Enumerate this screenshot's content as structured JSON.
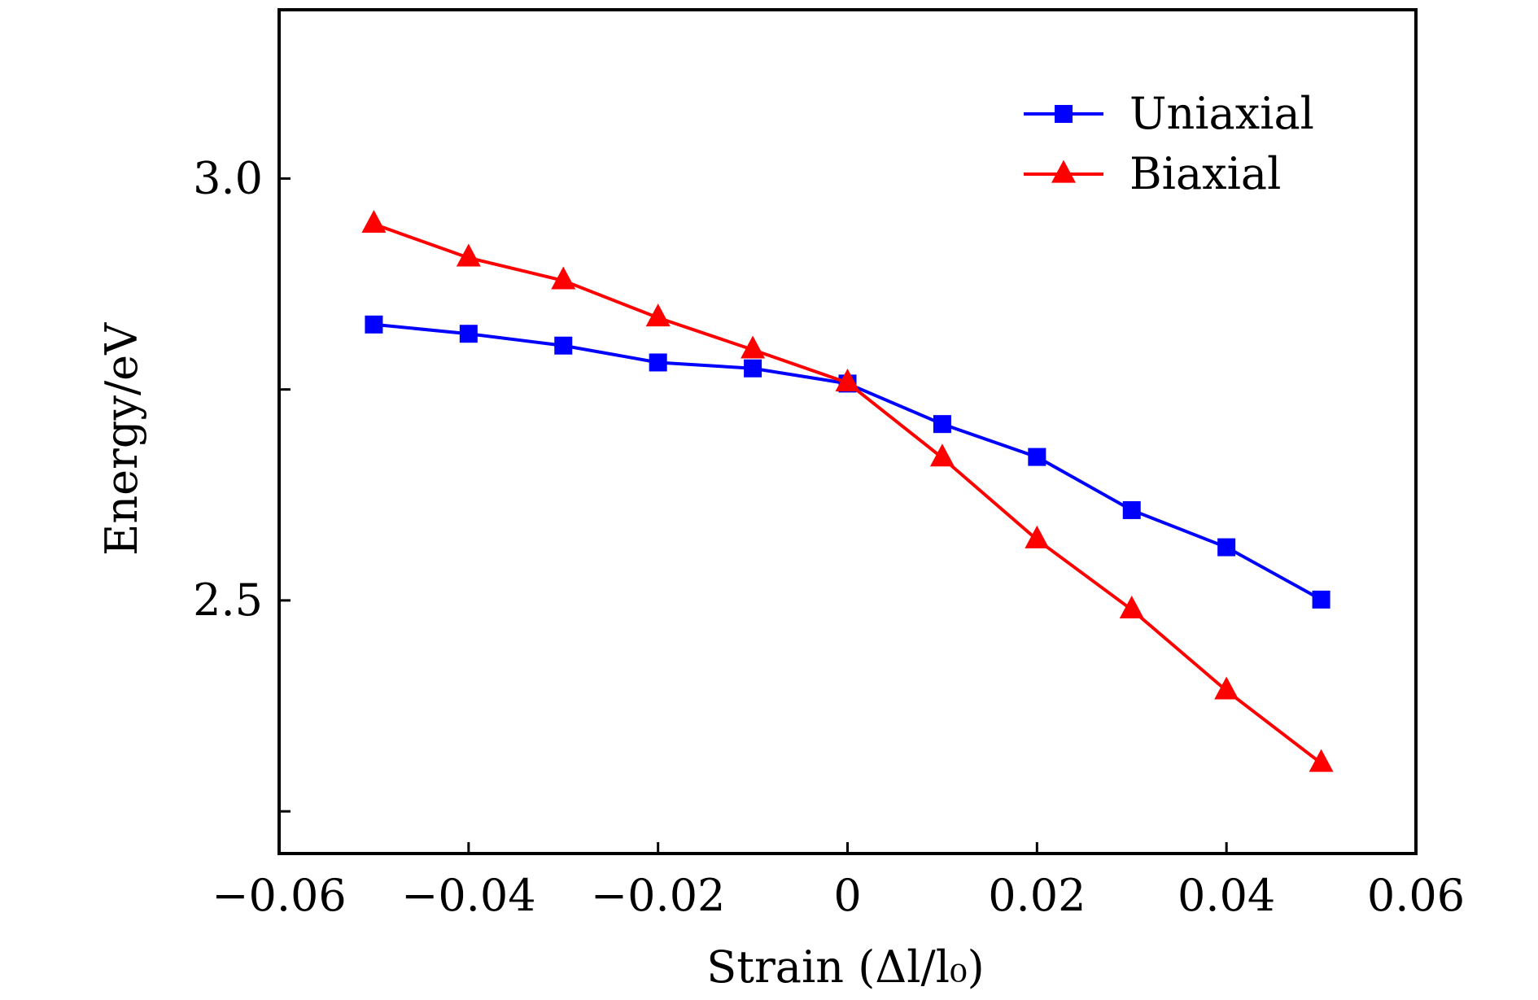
{
  "chart_data": {
    "type": "line",
    "xlabel": "Strain (Δl/l₀)",
    "ylabel": "Energy/eV",
    "xlim": [
      -0.06,
      0.06
    ],
    "ylim": [
      2.2,
      3.2
    ],
    "x_ticks": [
      -0.06,
      -0.04,
      -0.02,
      0,
      0.02,
      0.04,
      0.06
    ],
    "x_tick_labels": [
      "−0.06",
      "−0.04",
      "−0.02",
      "0",
      "0.02",
      "0.04",
      "0.06"
    ],
    "y_ticks": [
      2.25,
      2.5,
      2.75,
      3.0
    ],
    "y_tick_labels": [
      "",
      "2.5",
      "",
      "3.0"
    ],
    "grid": false,
    "legend_position": "top-right",
    "x": [
      -0.05,
      -0.04,
      -0.03,
      -0.02,
      -0.01,
      0,
      0.01,
      0.02,
      0.03,
      0.04,
      0.05
    ],
    "series": [
      {
        "name": "Uniaxial",
        "color": "#0000ff",
        "marker": "square",
        "values": [
          2.827,
          2.816,
          2.802,
          2.782,
          2.775,
          2.757,
          2.709,
          2.67,
          2.607,
          2.563,
          2.501
        ]
      },
      {
        "name": "Biaxial",
        "color": "#ff0000",
        "marker": "triangle",
        "values": [
          2.946,
          2.906,
          2.879,
          2.835,
          2.797,
          2.758,
          2.669,
          2.572,
          2.489,
          2.393,
          2.307
        ]
      }
    ]
  }
}
